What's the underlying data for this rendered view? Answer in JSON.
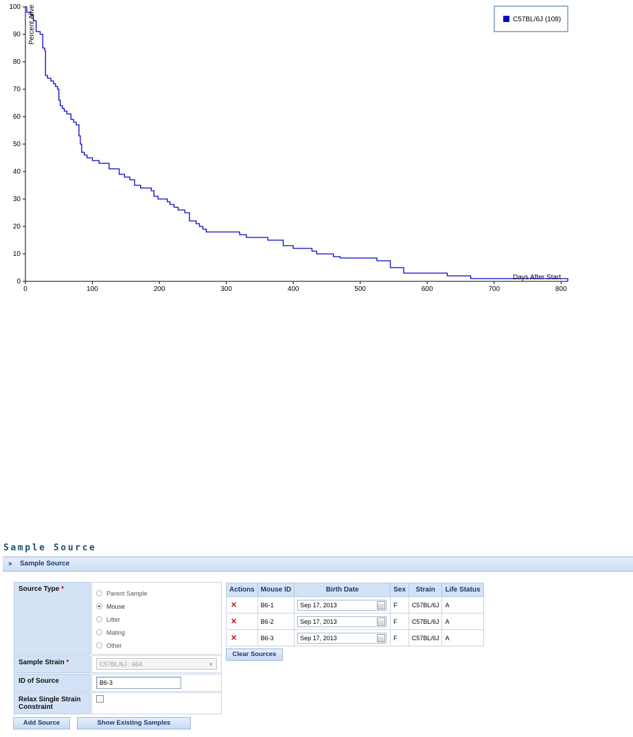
{
  "chart_data": {
    "type": "line",
    "title": "",
    "xlabel": "Days After Start",
    "ylabel": "Percent Alive",
    "xlim": [
      0,
      810
    ],
    "ylim": [
      0,
      100
    ],
    "x_ticks": [
      0,
      100,
      200,
      300,
      400,
      500,
      600,
      700,
      800
    ],
    "y_ticks": [
      0,
      10,
      20,
      30,
      40,
      50,
      60,
      70,
      80,
      90,
      100
    ],
    "legend_position": "top-right",
    "series": [
      {
        "name": "C57BL/6J (108)",
        "color": "#0000cc",
        "step": true,
        "points": [
          [
            0,
            100
          ],
          [
            2,
            98
          ],
          [
            8,
            97
          ],
          [
            12,
            95
          ],
          [
            16,
            91
          ],
          [
            22,
            90
          ],
          [
            26,
            88
          ],
          [
            26,
            85
          ],
          [
            29,
            84
          ],
          [
            30,
            79
          ],
          [
            30,
            75
          ],
          [
            33,
            74
          ],
          [
            38,
            73
          ],
          [
            42,
            72
          ],
          [
            45,
            71
          ],
          [
            48,
            70
          ],
          [
            50,
            66
          ],
          [
            52,
            64
          ],
          [
            55,
            63
          ],
          [
            58,
            62
          ],
          [
            62,
            61
          ],
          [
            68,
            59
          ],
          [
            72,
            58
          ],
          [
            76,
            57
          ],
          [
            80,
            53
          ],
          [
            82,
            50
          ],
          [
            84,
            47
          ],
          [
            88,
            46
          ],
          [
            92,
            45
          ],
          [
            100,
            44
          ],
          [
            110,
            43
          ],
          [
            125,
            41
          ],
          [
            140,
            39
          ],
          [
            148,
            38
          ],
          [
            156,
            37
          ],
          [
            163,
            35
          ],
          [
            172,
            34
          ],
          [
            188,
            33
          ],
          [
            192,
            31
          ],
          [
            198,
            30
          ],
          [
            212,
            29
          ],
          [
            216,
            28
          ],
          [
            222,
            27
          ],
          [
            228,
            26
          ],
          [
            238,
            25
          ],
          [
            245,
            22
          ],
          [
            255,
            21
          ],
          [
            260,
            20
          ],
          [
            265,
            19
          ],
          [
            270,
            18
          ],
          [
            320,
            17
          ],
          [
            330,
            16
          ],
          [
            362,
            15
          ],
          [
            385,
            13
          ],
          [
            400,
            12
          ],
          [
            428,
            11
          ],
          [
            435,
            10
          ],
          [
            460,
            9
          ],
          [
            470,
            8.5
          ],
          [
            525,
            7.5
          ],
          [
            545,
            5
          ],
          [
            565,
            3
          ],
          [
            630,
            2
          ],
          [
            665,
            1
          ],
          [
            810,
            0
          ]
        ]
      }
    ]
  },
  "section": {
    "title": "Sample Source",
    "panel_label": "Sample Source"
  },
  "form": {
    "source_type_label": "Source Type",
    "source_type_options": [
      "Parent Sample",
      "Mouse",
      "Litter",
      "Mating",
      "Other"
    ],
    "source_type_selected": "Mouse",
    "sample_strain_label": "Sample Strain",
    "sample_strain_value": "C57BL/6J : 664",
    "id_of_source_label": "ID of Source",
    "id_of_source_value": "B6-3",
    "relax_label_line1": "Relax Single Strain",
    "relax_label_line2": "Constraint",
    "required_mark": "*"
  },
  "buttons": {
    "add_source": "Add Source",
    "show_existing": "Show Existing Samples",
    "clear_sources": "Clear Sources"
  },
  "grid": {
    "columns": [
      "Actions",
      "Mouse ID",
      "Birth Date",
      "Sex",
      "Strain",
      "Life Status"
    ],
    "rows": [
      {
        "action": "✕",
        "mouse_id": "B6-1",
        "birth_date": "Sep 17, 2013",
        "sex": "F",
        "strain": "C57BL/6J",
        "life_status": "A"
      },
      {
        "action": "✕",
        "mouse_id": "B6-2",
        "birth_date": "Sep 17, 2013",
        "sex": "F",
        "strain": "C57BL/6J",
        "life_status": "A"
      },
      {
        "action": "✕",
        "mouse_id": "B6-3",
        "birth_date": "Sep 17, 2013",
        "sex": "F",
        "strain": "C57BL/6J",
        "life_status": "A"
      }
    ]
  }
}
